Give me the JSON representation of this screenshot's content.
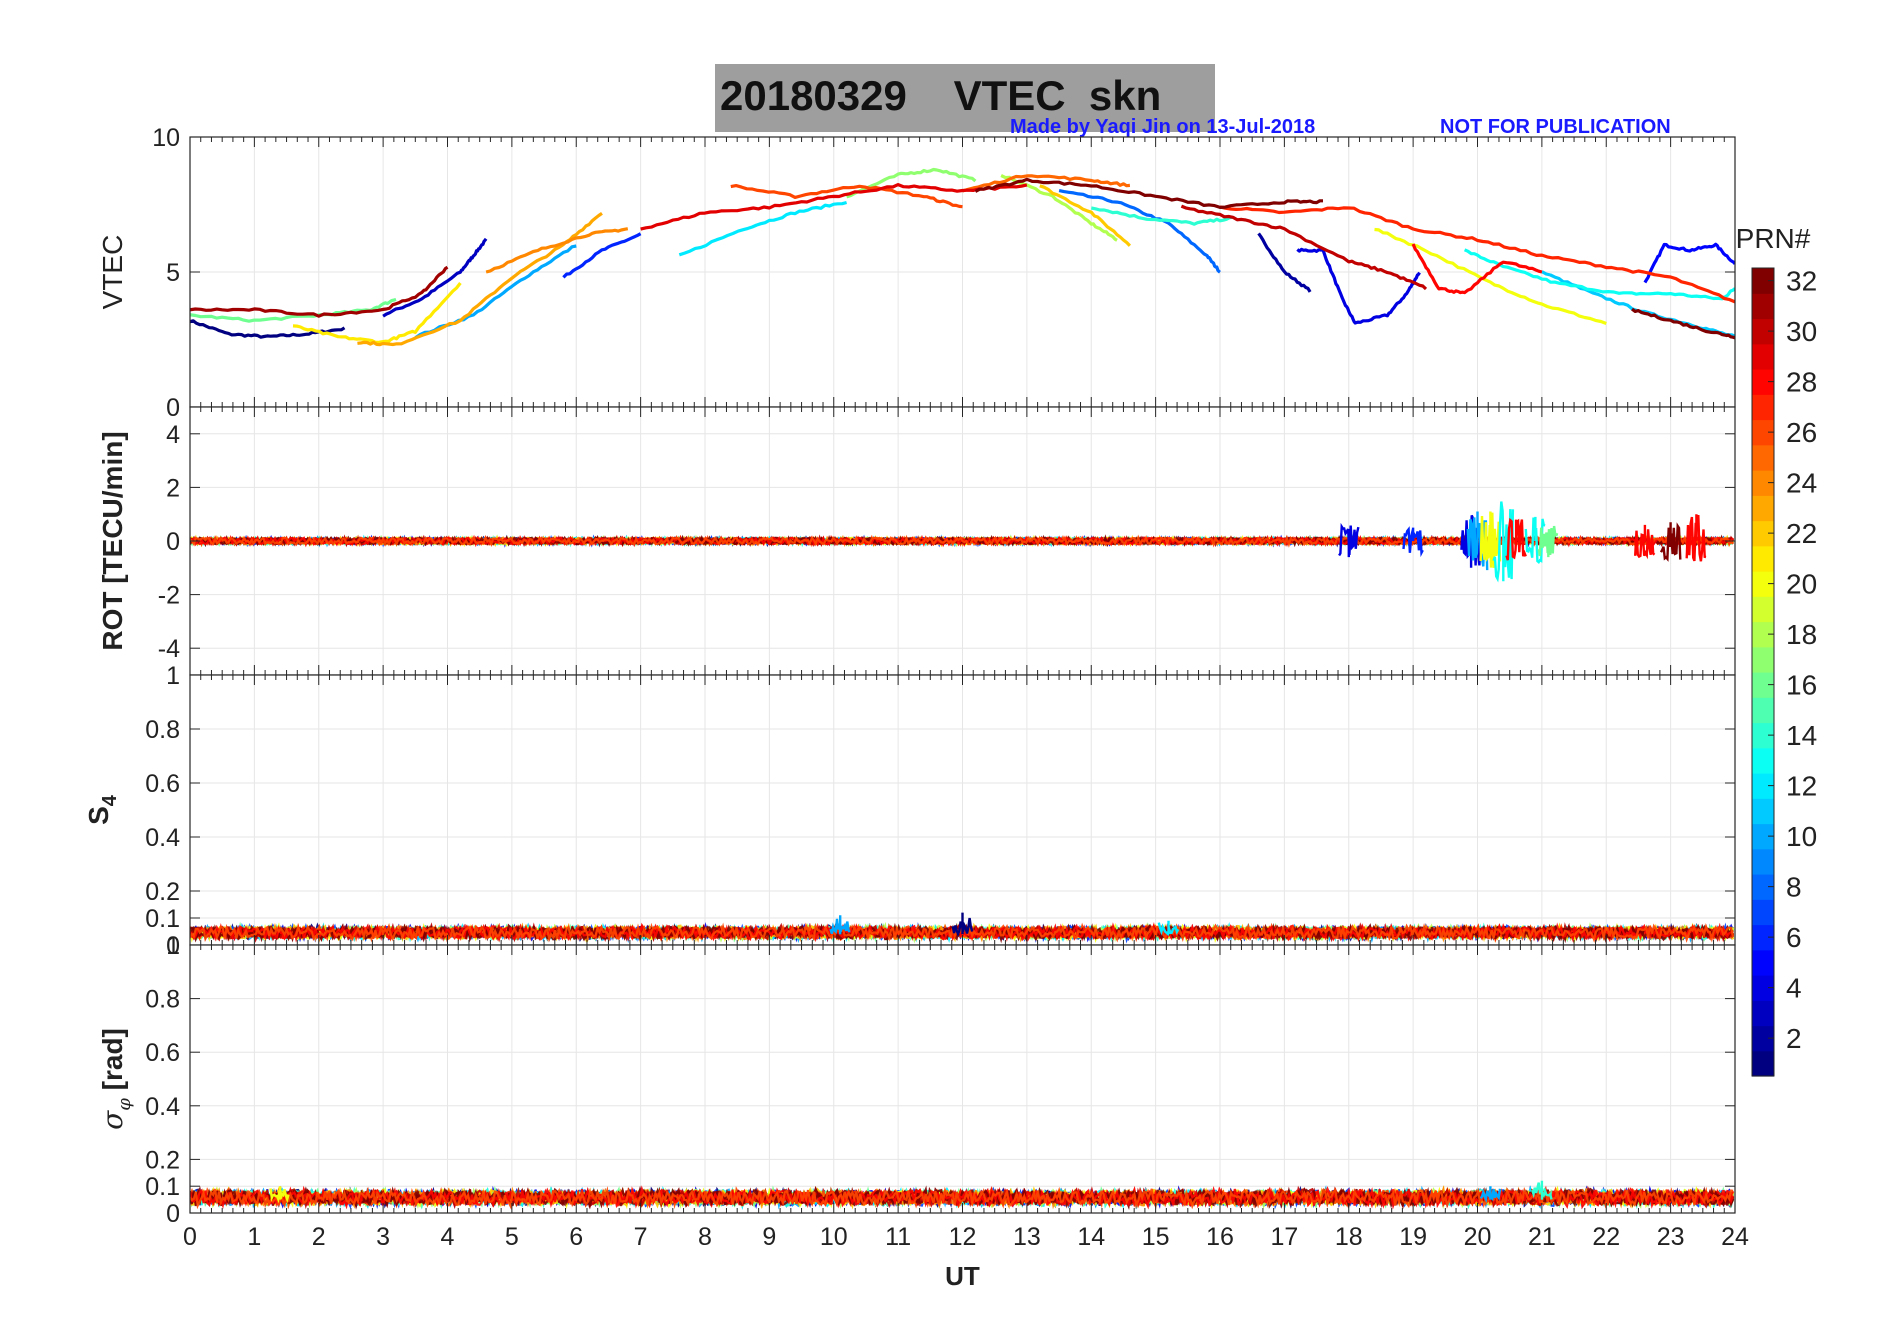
{
  "title": {
    "date": "20180329",
    "label": "VTEC  skn"
  },
  "credits": {
    "made_by": "Made by Yaqi Jin on 13-Jul-2018",
    "notice": "NOT FOR PUBLICATION"
  },
  "colors": {
    "credit": "#1a1aff",
    "title_bg": "#9e9e9e",
    "axis": "#262626",
    "grid": "#e6e6e6"
  },
  "chart_data": [
    {
      "type": "line",
      "panel": "vtec",
      "ylabel": "VTEC",
      "ylim": [
        0,
        10
      ],
      "yticks": [
        0,
        5,
        10
      ],
      "xlim": [
        0,
        24
      ],
      "series": [
        {
          "prn": 1,
          "x": [
            0,
            0.6,
            1.2,
            1.8,
            2.4
          ],
          "y": [
            3.2,
            2.7,
            2.6,
            2.7,
            2.9
          ]
        },
        {
          "prn": 3,
          "x": [
            3.0,
            3.6,
            4.2,
            4.4,
            4.6
          ],
          "y": [
            3.4,
            4.0,
            5.0,
            5.6,
            6.2
          ]
        },
        {
          "prn": 2,
          "x": [
            16.6,
            17.0,
            17.4
          ],
          "y": [
            6.4,
            5.0,
            4.3
          ]
        },
        {
          "prn": 4,
          "x": [
            17.2,
            17.6,
            17.9,
            18.1,
            18.6,
            18.9,
            19.1
          ],
          "y": [
            5.8,
            5.8,
            4.0,
            3.1,
            3.4,
            4.2,
            5.0
          ]
        },
        {
          "prn": 5,
          "x": [
            22.6,
            22.9,
            23.3,
            23.7,
            24.0
          ],
          "y": [
            4.6,
            6.0,
            5.8,
            6.0,
            5.3
          ]
        },
        {
          "prn": 6,
          "x": [
            5.8,
            6.4,
            7.0
          ],
          "y": [
            4.8,
            5.8,
            6.4
          ]
        },
        {
          "prn": 8,
          "x": [
            13.5,
            14.4,
            15.2,
            15.8,
            16.0
          ],
          "y": [
            8.0,
            7.6,
            6.8,
            5.6,
            5.0
          ]
        },
        {
          "prn": 10,
          "x": [
            3.5,
            4.4,
            5.2,
            6.0
          ],
          "y": [
            2.6,
            3.4,
            4.8,
            6.0
          ]
        },
        {
          "prn": 11,
          "x": [
            21.0,
            21.8,
            22.6,
            23.4,
            24.0
          ],
          "y": [
            5.0,
            4.2,
            3.5,
            3.0,
            2.6
          ]
        },
        {
          "prn": 12,
          "x": [
            7.6,
            8.6,
            9.4,
            10.2
          ],
          "y": [
            5.6,
            6.6,
            7.2,
            7.6
          ]
        },
        {
          "prn": 13,
          "x": [
            19.8,
            20.4,
            21.2,
            22.2,
            23.0,
            23.8,
            24.0
          ],
          "y": [
            5.8,
            5.2,
            4.6,
            4.2,
            4.2,
            4.0,
            4.4
          ]
        },
        {
          "prn": 14,
          "x": [
            14.0,
            14.8,
            15.6,
            16.2
          ],
          "y": [
            7.4,
            7.0,
            6.8,
            7.0
          ]
        },
        {
          "prn": 16,
          "x": [
            0,
            1.0,
            2.0,
            2.8,
            3.2
          ],
          "y": [
            3.4,
            3.2,
            3.4,
            3.6,
            4.0
          ]
        },
        {
          "prn": 17,
          "x": [
            10.2,
            11.0,
            11.6,
            12.2
          ],
          "y": [
            7.8,
            8.6,
            8.8,
            8.4
          ]
        },
        {
          "prn": 18,
          "x": [
            12.6,
            13.4,
            14.0,
            14.4
          ],
          "y": [
            8.6,
            7.8,
            6.8,
            6.2
          ]
        },
        {
          "prn": 20,
          "x": [
            18.4,
            19.2,
            20.2,
            21.0,
            22.0
          ],
          "y": [
            6.6,
            5.8,
            4.6,
            3.8,
            3.1
          ]
        },
        {
          "prn": 21,
          "x": [
            1.6,
            2.3,
            3.0,
            3.5,
            4.2
          ],
          "y": [
            3.0,
            2.6,
            2.4,
            2.8,
            4.6
          ]
        },
        {
          "prn": 22,
          "x": [
            13.2,
            14.0,
            14.6
          ],
          "y": [
            8.2,
            7.2,
            6.0
          ]
        },
        {
          "prn": 23,
          "x": [
            2.6,
            3.2,
            4.2,
            5.0,
            5.8,
            6.4
          ],
          "y": [
            2.4,
            2.3,
            3.2,
            4.8,
            6.0,
            7.2
          ]
        },
        {
          "prn": 24,
          "x": [
            4.6,
            5.4,
            6.2,
            6.8
          ],
          "y": [
            5.0,
            5.8,
            6.4,
            6.6
          ]
        },
        {
          "prn": 25,
          "x": [
            12.0,
            13.0,
            14.0,
            14.6
          ],
          "y": [
            8.0,
            8.6,
            8.4,
            8.2
          ]
        },
        {
          "prn": 26,
          "x": [
            8.4,
            9.4,
            10.4,
            11.4,
            12.0
          ],
          "y": [
            8.2,
            7.8,
            8.2,
            7.8,
            7.4
          ]
        },
        {
          "prn": 27,
          "x": [
            16.0,
            17.0,
            18.0,
            19.0,
            20.0,
            21.0,
            22.0,
            23.0,
            24.0
          ],
          "y": [
            7.4,
            7.2,
            7.4,
            6.6,
            6.2,
            5.6,
            5.2,
            4.8,
            3.9
          ]
        },
        {
          "prn": 28,
          "x": [
            19.0,
            19.4,
            19.8,
            20.4,
            21.0
          ],
          "y": [
            6.0,
            4.4,
            4.2,
            5.4,
            5.0
          ]
        },
        {
          "prn": 29,
          "x": [
            7.0,
            8.0,
            9.0,
            10.0,
            11.0,
            12.0,
            13.0
          ],
          "y": [
            6.6,
            7.2,
            7.4,
            7.8,
            8.2,
            8.0,
            8.2
          ]
        },
        {
          "prn": 30,
          "x": [
            15.4,
            16.2,
            17.0,
            18.0,
            18.6,
            19.2
          ],
          "y": [
            7.4,
            7.0,
            6.6,
            5.4,
            5.0,
            4.4
          ]
        },
        {
          "prn": 31,
          "x": [
            0,
            1.0,
            2.0,
            3.0,
            3.6,
            4.0
          ],
          "y": [
            3.6,
            3.6,
            3.4,
            3.6,
            4.2,
            5.2
          ]
        },
        {
          "prn": 32,
          "x": [
            12.2,
            13.0,
            14.0,
            15.0,
            16.0,
            17.0,
            17.6
          ],
          "y": [
            8.0,
            8.4,
            8.2,
            7.8,
            7.4,
            7.6,
            7.6
          ]
        },
        {
          "prn": 32,
          "x": [
            22.4,
            23.0,
            23.6,
            24.0
          ],
          "y": [
            3.6,
            3.2,
            2.8,
            2.6
          ]
        }
      ]
    },
    {
      "type": "scatter",
      "panel": "rot",
      "ylabel": "ROT [TECU/min]",
      "ylim": [
        -5,
        5
      ],
      "yticks": [
        -4,
        -2,
        0,
        2,
        4
      ],
      "xlim": [
        0,
        24
      ],
      "baseline": 0,
      "noise_amplitude": 0.12,
      "bursts": [
        {
          "x": 18.0,
          "prn": 4,
          "peak": -0.6
        },
        {
          "x": 19.0,
          "prn": 6,
          "peak": 0.5
        },
        {
          "x": 19.9,
          "prn": 4,
          "peak": -1.0
        },
        {
          "x": 20.0,
          "prn": 10,
          "peak": 1.1
        },
        {
          "x": 20.2,
          "prn": 20,
          "peak": 1.1
        },
        {
          "x": 20.4,
          "prn": 13,
          "peak": -1.5
        },
        {
          "x": 20.6,
          "prn": 28,
          "peak": 0.8
        },
        {
          "x": 20.9,
          "prn": 13,
          "peak": 0.9
        },
        {
          "x": 21.1,
          "prn": 16,
          "peak": -0.6
        },
        {
          "x": 22.6,
          "prn": 28,
          "peak": 0.6
        },
        {
          "x": 23.0,
          "prn": 32,
          "peak": 0.7
        },
        {
          "x": 23.4,
          "prn": 28,
          "peak": 1.0
        }
      ]
    },
    {
      "type": "scatter",
      "panel": "s4",
      "ylabel": "S4",
      "ylim": [
        0,
        1
      ],
      "yticks": [
        0,
        0.1,
        0.2,
        0.4,
        0.6,
        0.8,
        1
      ],
      "xlim": [
        0,
        24
      ],
      "baseline": 0.04,
      "noise_amplitude": 0.02,
      "spikes": [
        {
          "x": 10.1,
          "prn": 10,
          "peak": 0.11
        },
        {
          "x": 12.0,
          "prn": 1,
          "peak": 0.12
        },
        {
          "x": 15.2,
          "prn": 12,
          "peak": 0.09
        }
      ]
    },
    {
      "type": "scatter",
      "panel": "sigma_phi",
      "ylabel": "σ_φ [rad]",
      "ylim": [
        0,
        1
      ],
      "yticks": [
        0,
        0.1,
        0.2,
        0.4,
        0.6,
        0.8,
        1
      ],
      "xlim": [
        0,
        24
      ],
      "xlabel": "UT",
      "xticks": [
        0,
        1,
        2,
        3,
        4,
        5,
        6,
        7,
        8,
        9,
        10,
        11,
        12,
        13,
        14,
        15,
        16,
        17,
        18,
        19,
        20,
        21,
        22,
        23,
        24
      ],
      "baseline": 0.05,
      "noise_amplitude": 0.025,
      "spikes": [
        {
          "x": 20.2,
          "prn": 10,
          "peak": 0.1
        },
        {
          "x": 21.0,
          "prn": 14,
          "peak": 0.12
        },
        {
          "x": 1.4,
          "prn": 20,
          "peak": 0.1
        }
      ]
    }
  ],
  "colorbar": {
    "label": "PRN#",
    "range": [
      1,
      32
    ],
    "ticks": [
      2,
      4,
      6,
      8,
      10,
      12,
      14,
      16,
      18,
      20,
      22,
      24,
      26,
      28,
      30,
      32
    ],
    "colormap": "jet"
  }
}
